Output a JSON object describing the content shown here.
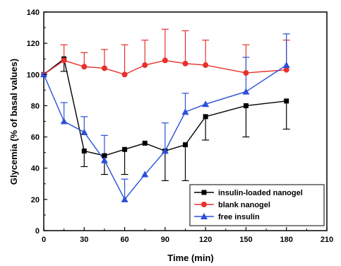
{
  "chart_data": {
    "type": "line",
    "xlabel": "Time (min)",
    "ylabel": "Glycemia (% of basal values)",
    "xlim": [
      0,
      210
    ],
    "ylim": [
      0,
      140
    ],
    "xticks": [
      0,
      30,
      60,
      90,
      120,
      150,
      180,
      210
    ],
    "yticks": [
      0,
      20,
      40,
      60,
      80,
      100,
      120,
      140
    ],
    "grid": false,
    "legend_position": "bottom-right",
    "series": [
      {
        "name": "insulin-loaded nanogel",
        "color": "#000000",
        "marker": "square",
        "x": [
          0,
          15,
          30,
          45,
          60,
          75,
          90,
          105,
          120,
          150,
          180
        ],
        "y": [
          100,
          110,
          51,
          48,
          52,
          56,
          51,
          55,
          73,
          80,
          83
        ],
        "err_up": [
          0,
          0,
          0,
          0,
          0,
          0,
          0,
          0,
          0,
          0,
          0
        ],
        "err_down": [
          0,
          8,
          10,
          12,
          16,
          0,
          19,
          23,
          15,
          20,
          18
        ]
      },
      {
        "name": "blank nanogel",
        "color": "#e8302a",
        "marker": "circle",
        "x": [
          0,
          15,
          30,
          45,
          60,
          75,
          90,
          105,
          120,
          150,
          180
        ],
        "y": [
          100,
          109,
          105,
          104,
          100,
          106,
          109,
          107,
          106,
          101,
          103
        ],
        "err_up": [
          0,
          10,
          9,
          12,
          19,
          16,
          20,
          21,
          16,
          18,
          19
        ],
        "err_down": [
          0,
          0,
          0,
          0,
          0,
          0,
          0,
          0,
          0,
          0,
          0
        ]
      },
      {
        "name": "free insulin",
        "color": "#2a50d8",
        "marker": "triangle",
        "x": [
          0,
          15,
          30,
          45,
          60,
          75,
          90,
          105,
          120,
          150,
          180
        ],
        "y": [
          100,
          70,
          63,
          45,
          20,
          36,
          51,
          76,
          81,
          89,
          106
        ],
        "err_up": [
          0,
          12,
          10,
          16,
          13,
          0,
          18,
          12,
          0,
          22,
          20
        ],
        "err_down": [
          0,
          0,
          0,
          0,
          0,
          0,
          0,
          0,
          0,
          0,
          0
        ]
      }
    ]
  }
}
